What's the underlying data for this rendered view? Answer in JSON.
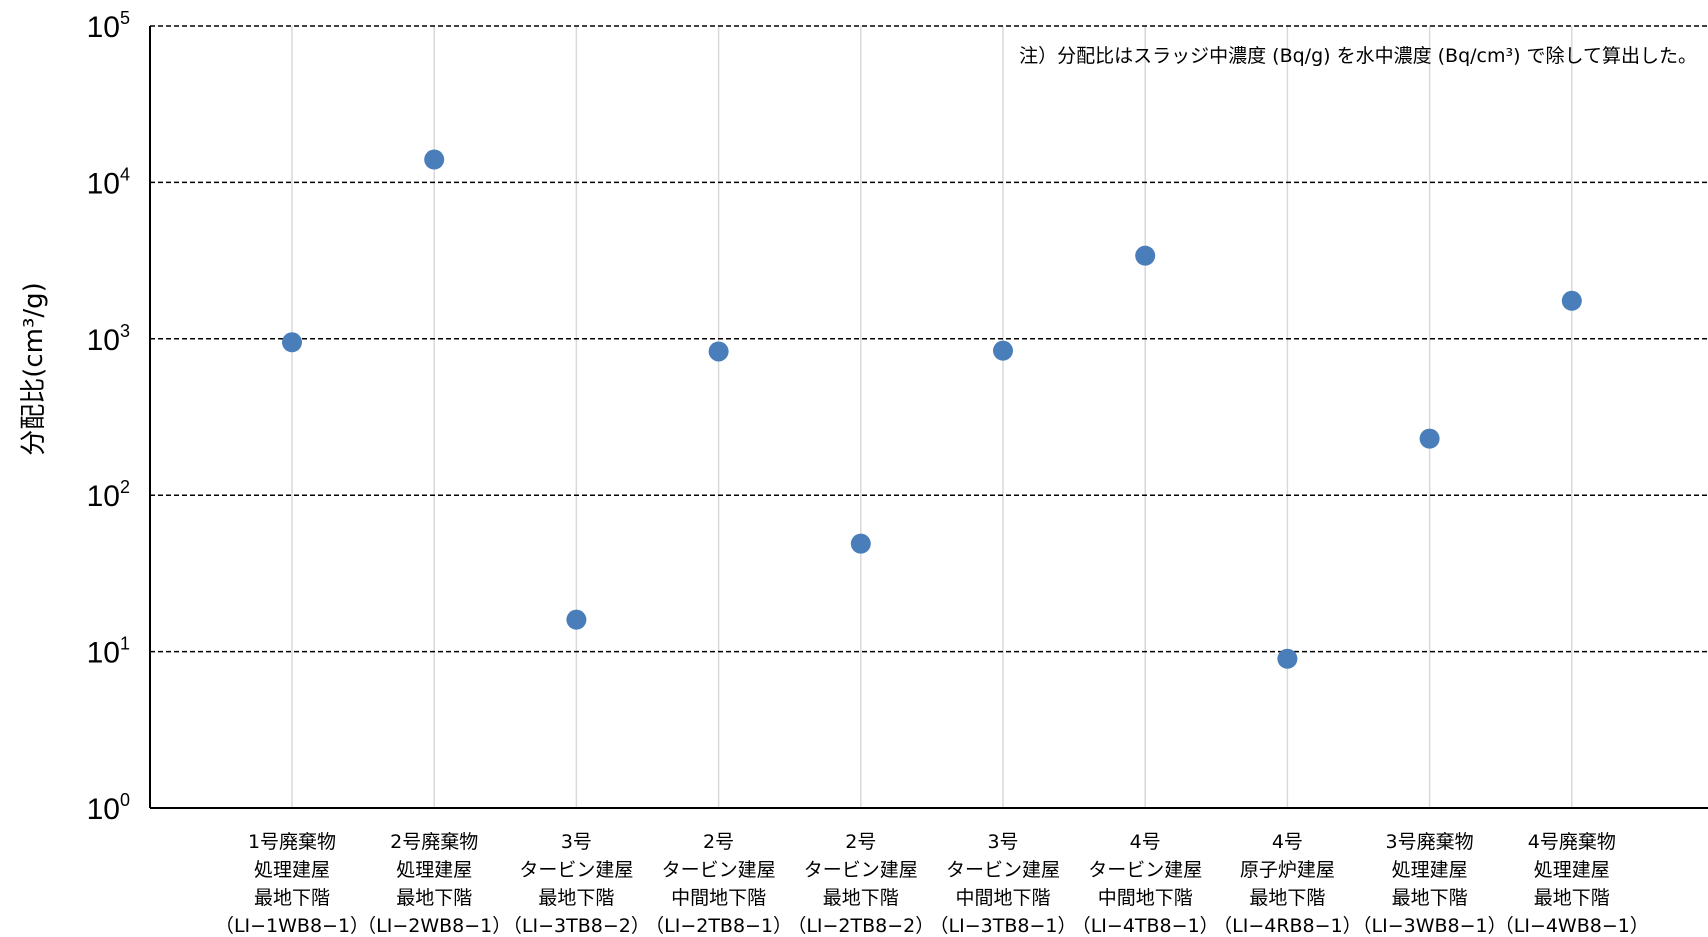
{
  "chart_data": {
    "type": "scatter",
    "ylabel": "分配比(cm³/g)",
    "yscale": "log",
    "ylim": [
      1,
      100000
    ],
    "y_ticks": [
      {
        "base": "10",
        "exp": "0",
        "value": 1
      },
      {
        "base": "10",
        "exp": "1",
        "value": 10
      },
      {
        "base": "10",
        "exp": "2",
        "value": 100
      },
      {
        "base": "10",
        "exp": "3",
        "value": 1000
      },
      {
        "base": "10",
        "exp": "4",
        "value": 10000
      },
      {
        "base": "10",
        "exp": "5",
        "value": 100000
      }
    ],
    "grid": {
      "horizontal": "dashed",
      "vertical": "solid-light"
    },
    "legend": "none",
    "annotation": "注）分配比はスラッジ中濃度 (Bq/g) を水中濃度 (Bq/cm³) で除して算出した。",
    "marker_color": "#4a7ebb",
    "categories": [
      [
        "1号廃棄物",
        "処理建屋",
        "最地下階",
        "（LI−1WB8−1）"
      ],
      [
        "2号廃棄物",
        "処理建屋",
        "最地下階",
        "（LI−2WB8−1）"
      ],
      [
        "3号",
        "タービン建屋",
        "最地下階",
        "（LI−3TB8−2）"
      ],
      [
        "2号",
        "タービン建屋",
        "中間地下階",
        "（LI−2TB8−1）"
      ],
      [
        "2号",
        "タービン建屋",
        "最地下階",
        "（LI−2TB8−2）"
      ],
      [
        "3号",
        "タービン建屋",
        "中間地下階",
        "（LI−3TB8−1）"
      ],
      [
        "4号",
        "タービン建屋",
        "中間地下階",
        "（LI−4TB8−1）"
      ],
      [
        "4号",
        "原子炉建屋",
        "最地下階",
        "（LI−4RB8−1）"
      ],
      [
        "3号廃棄物",
        "処理建屋",
        "最地下階",
        "（LI−3WB8−1）"
      ],
      [
        "4号廃棄物",
        "処理建屋",
        "最地下階",
        "（LI−4WB8−1）"
      ]
    ],
    "values": [
      950,
      14000,
      16,
      830,
      49,
      840,
      3400,
      9,
      230,
      1750
    ]
  }
}
